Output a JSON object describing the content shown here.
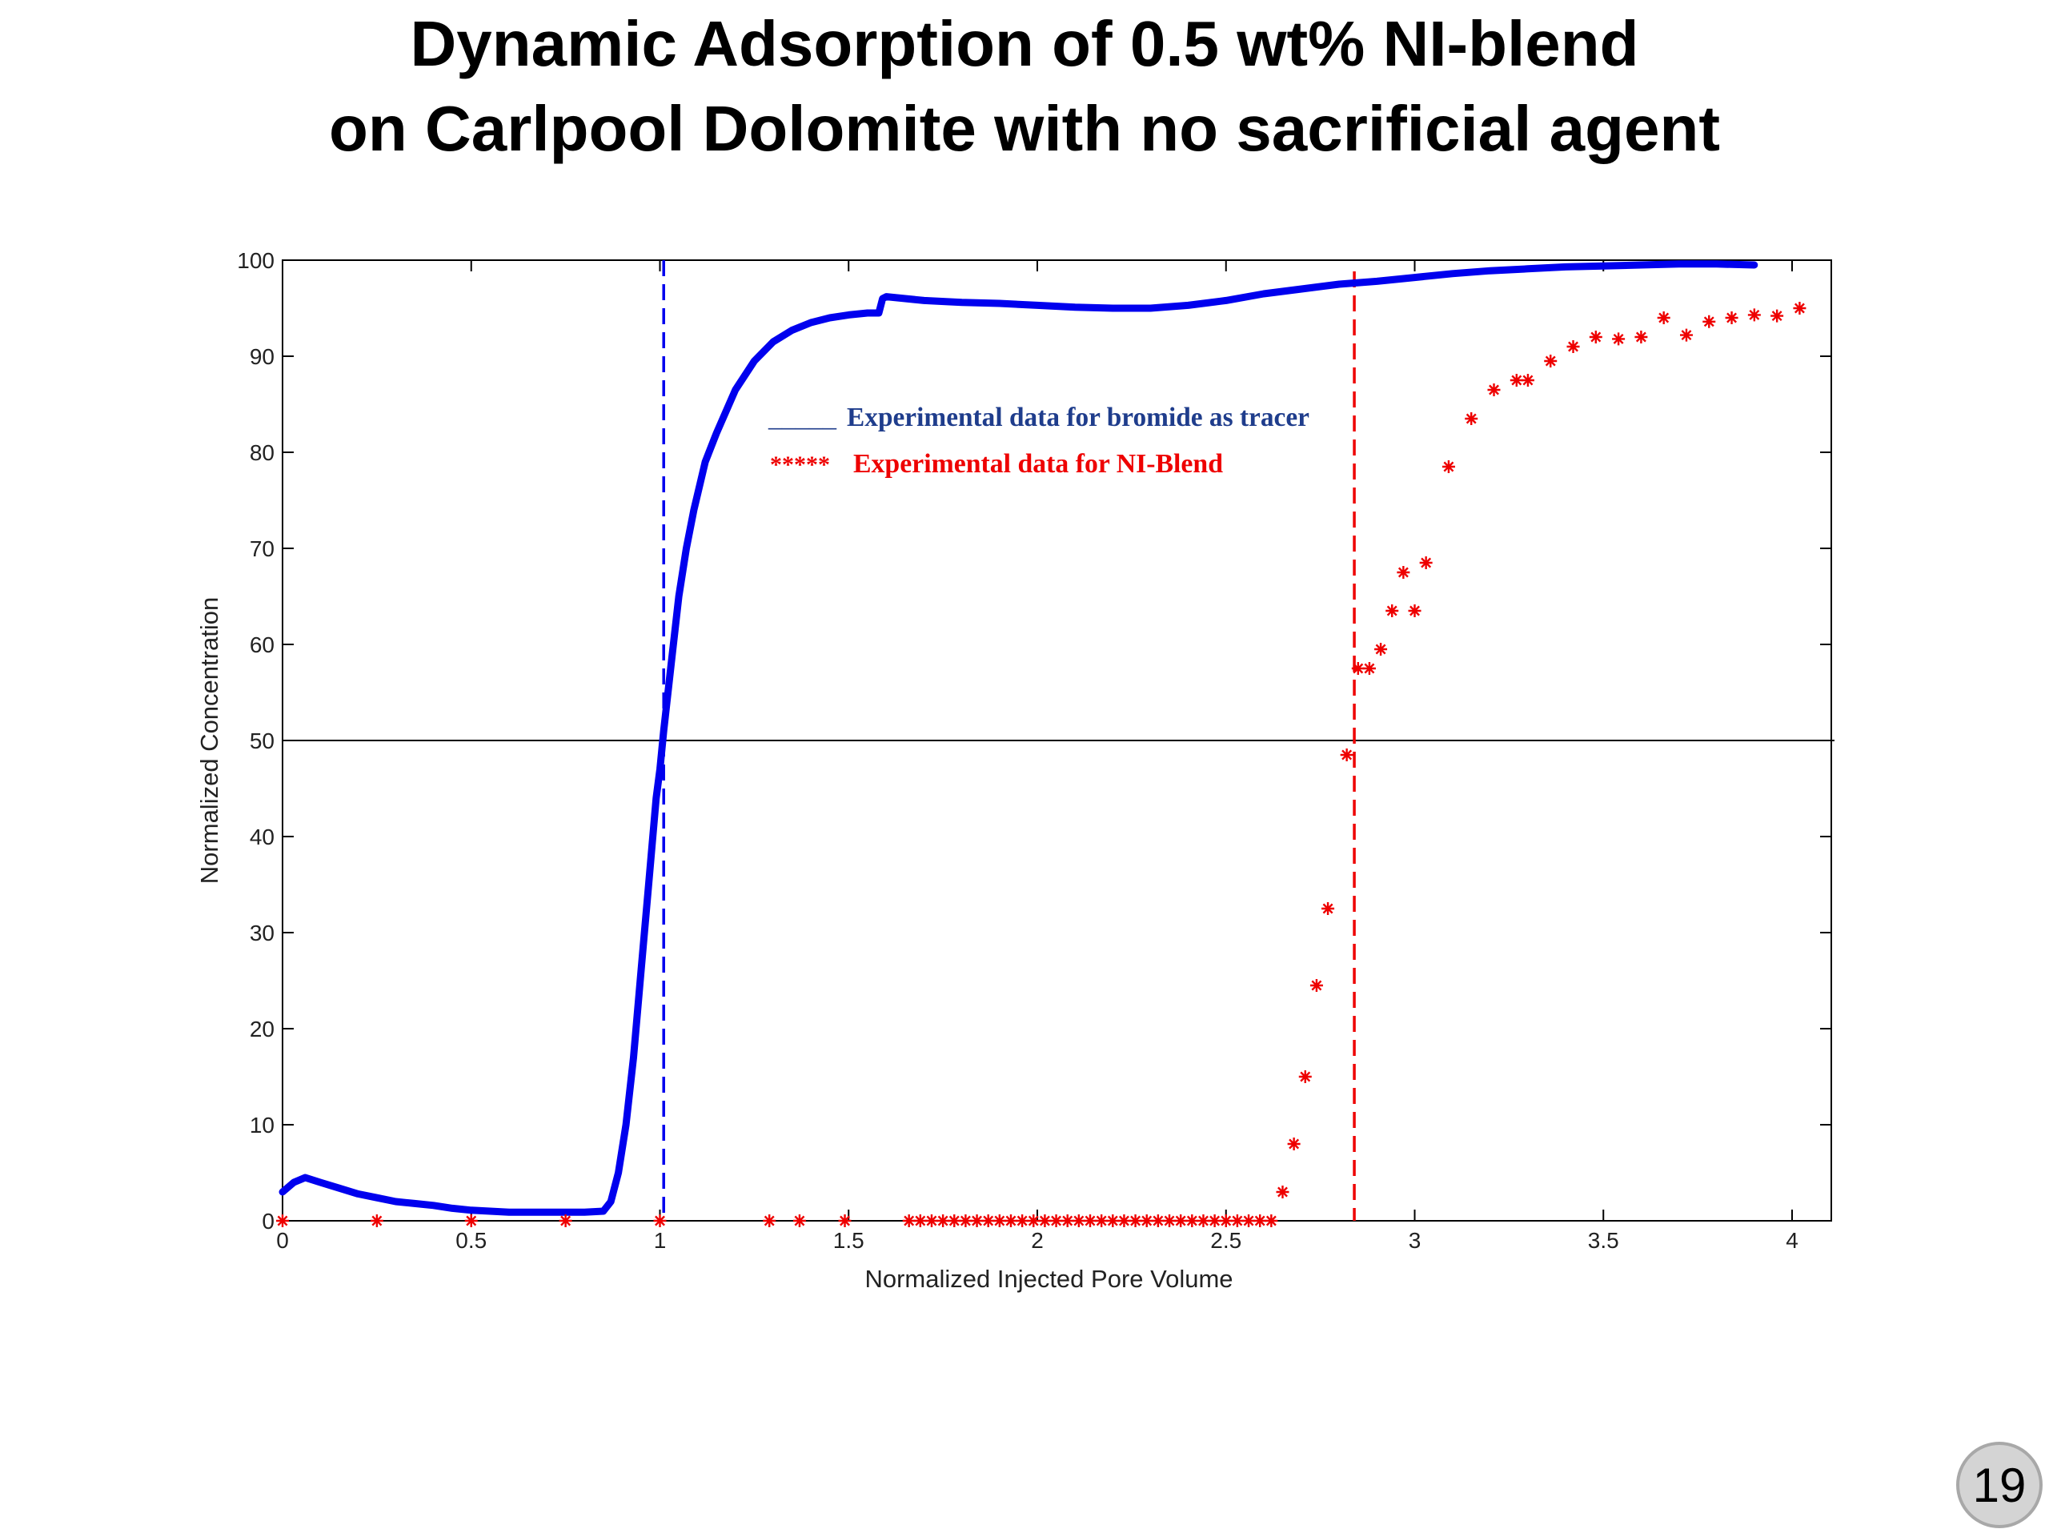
{
  "slide": {
    "title_line1": "Dynamic Adsorption of 0.5 wt% NI-blend",
    "title_line2": "on Carlpool Dolomite with no sacrificial agent",
    "number": "19"
  },
  "colors": {
    "bromide": "#0000ee",
    "ni_blend": "#ee0000",
    "legend_bromide_text": "#1f3d8c",
    "axis": "#000000"
  },
  "chart_data": {
    "type": "scatter",
    "xlabel": "Normalized Injected Pore Volume",
    "ylabel": "Normalized Concentration",
    "xlim": [
      0,
      4.1
    ],
    "ylim": [
      0,
      100
    ],
    "xticks": [
      0,
      0.5,
      1,
      1.5,
      2,
      2.5,
      3,
      3.5,
      4
    ],
    "xtick_labels": [
      "0",
      "0.5",
      "1",
      "1.5",
      "2",
      "2.5",
      "3",
      "3.5",
      "4"
    ],
    "yticks": [
      0,
      10,
      20,
      30,
      40,
      50,
      60,
      70,
      80,
      90,
      100
    ],
    "ytick_labels": [
      "0",
      "10",
      "20",
      "30",
      "40",
      "50",
      "60",
      "70",
      "80",
      "90",
      "100"
    ],
    "grid": false,
    "legend": {
      "placement": "upper-center",
      "entries": [
        {
          "marker": "_____",
          "text": "Experimental data for bromide as tracer"
        },
        {
          "marker": "*****",
          "text": "Experimental data for NI-Blend"
        }
      ]
    },
    "reference_lines": {
      "horizontal_y": 50,
      "bromide_vertical_x": 1.01,
      "ni_blend_vertical_x": 2.84
    },
    "series": [
      {
        "style": "line",
        "x": [
          0,
          0.03,
          0.06,
          0.1,
          0.15,
          0.2,
          0.25,
          0.3,
          0.35,
          0.4,
          0.45,
          0.5,
          0.55,
          0.6,
          0.65,
          0.7,
          0.75,
          0.8,
          0.85,
          0.87,
          0.89,
          0.91,
          0.93,
          0.95,
          0.97,
          0.99,
          1.0,
          1.01,
          1.03,
          1.05,
          1.07,
          1.09,
          1.12,
          1.15,
          1.2,
          1.25,
          1.3,
          1.35,
          1.4,
          1.45,
          1.5,
          1.55,
          1.58,
          1.59,
          1.6,
          1.65,
          1.7,
          1.8,
          1.9,
          2.0,
          2.1,
          2.2,
          2.3,
          2.4,
          2.5,
          2.6,
          2.7,
          2.8,
          2.9,
          3.0,
          3.1,
          3.2,
          3.3,
          3.4,
          3.5,
          3.6,
          3.7,
          3.8,
          3.9
        ],
        "y": [
          3,
          4,
          4.5,
          4,
          3.4,
          2.8,
          2.4,
          2,
          1.8,
          1.6,
          1.3,
          1.1,
          1,
          0.9,
          0.9,
          0.9,
          0.9,
          0.9,
          1,
          2,
          5,
          10,
          17,
          26,
          35,
          44,
          47,
          51,
          58,
          65,
          70,
          74,
          79,
          82,
          86.5,
          89.5,
          91.5,
          92.7,
          93.5,
          94,
          94.3,
          94.5,
          94.5,
          96,
          96.2,
          96,
          95.8,
          95.6,
          95.5,
          95.3,
          95.1,
          95,
          95,
          95.3,
          95.8,
          96.5,
          97,
          97.5,
          97.8,
          98.2,
          98.6,
          98.9,
          99.1,
          99.3,
          99.4,
          99.5,
          99.6,
          99.6,
          99.5
        ]
      },
      {
        "style": "scatter",
        "x": [
          0,
          0.25,
          0.5,
          0.75,
          1.0,
          1.29,
          1.37,
          1.49,
          1.66,
          1.69,
          1.72,
          1.75,
          1.78,
          1.81,
          1.84,
          1.87,
          1.9,
          1.93,
          1.96,
          1.99,
          2.02,
          2.05,
          2.08,
          2.11,
          2.14,
          2.17,
          2.2,
          2.23,
          2.26,
          2.29,
          2.32,
          2.35,
          2.38,
          2.41,
          2.44,
          2.47,
          2.5,
          2.53,
          2.56,
          2.59,
          2.62,
          2.65,
          2.68,
          2.71,
          2.74,
          2.77,
          2.82,
          2.85,
          2.88,
          2.91,
          2.94,
          2.97,
          3.0,
          3.03,
          3.09,
          3.15,
          3.21,
          3.27,
          3.3,
          3.36,
          3.42,
          3.48,
          3.54,
          3.6,
          3.66,
          3.72,
          3.78,
          3.84,
          3.9,
          3.96,
          4.02
        ],
        "y": [
          0,
          0,
          0,
          0,
          0,
          0,
          0,
          0,
          0,
          0,
          0,
          0,
          0,
          0,
          0,
          0,
          0,
          0,
          0,
          0,
          0,
          0,
          0,
          0,
          0,
          0,
          0,
          0,
          0,
          0,
          0,
          0,
          0,
          0,
          0,
          0,
          0,
          0,
          0,
          0,
          0,
          3,
          8,
          15,
          24.5,
          32.5,
          48.5,
          57.5,
          57.5,
          59.5,
          63.5,
          67.5,
          63.5,
          68.5,
          78.5,
          83.5,
          86.5,
          87.5,
          87.5,
          89.5,
          91,
          92,
          91.8,
          92,
          94,
          92.2,
          93.6,
          94,
          94.3,
          94.2,
          95
        ]
      }
    ]
  }
}
